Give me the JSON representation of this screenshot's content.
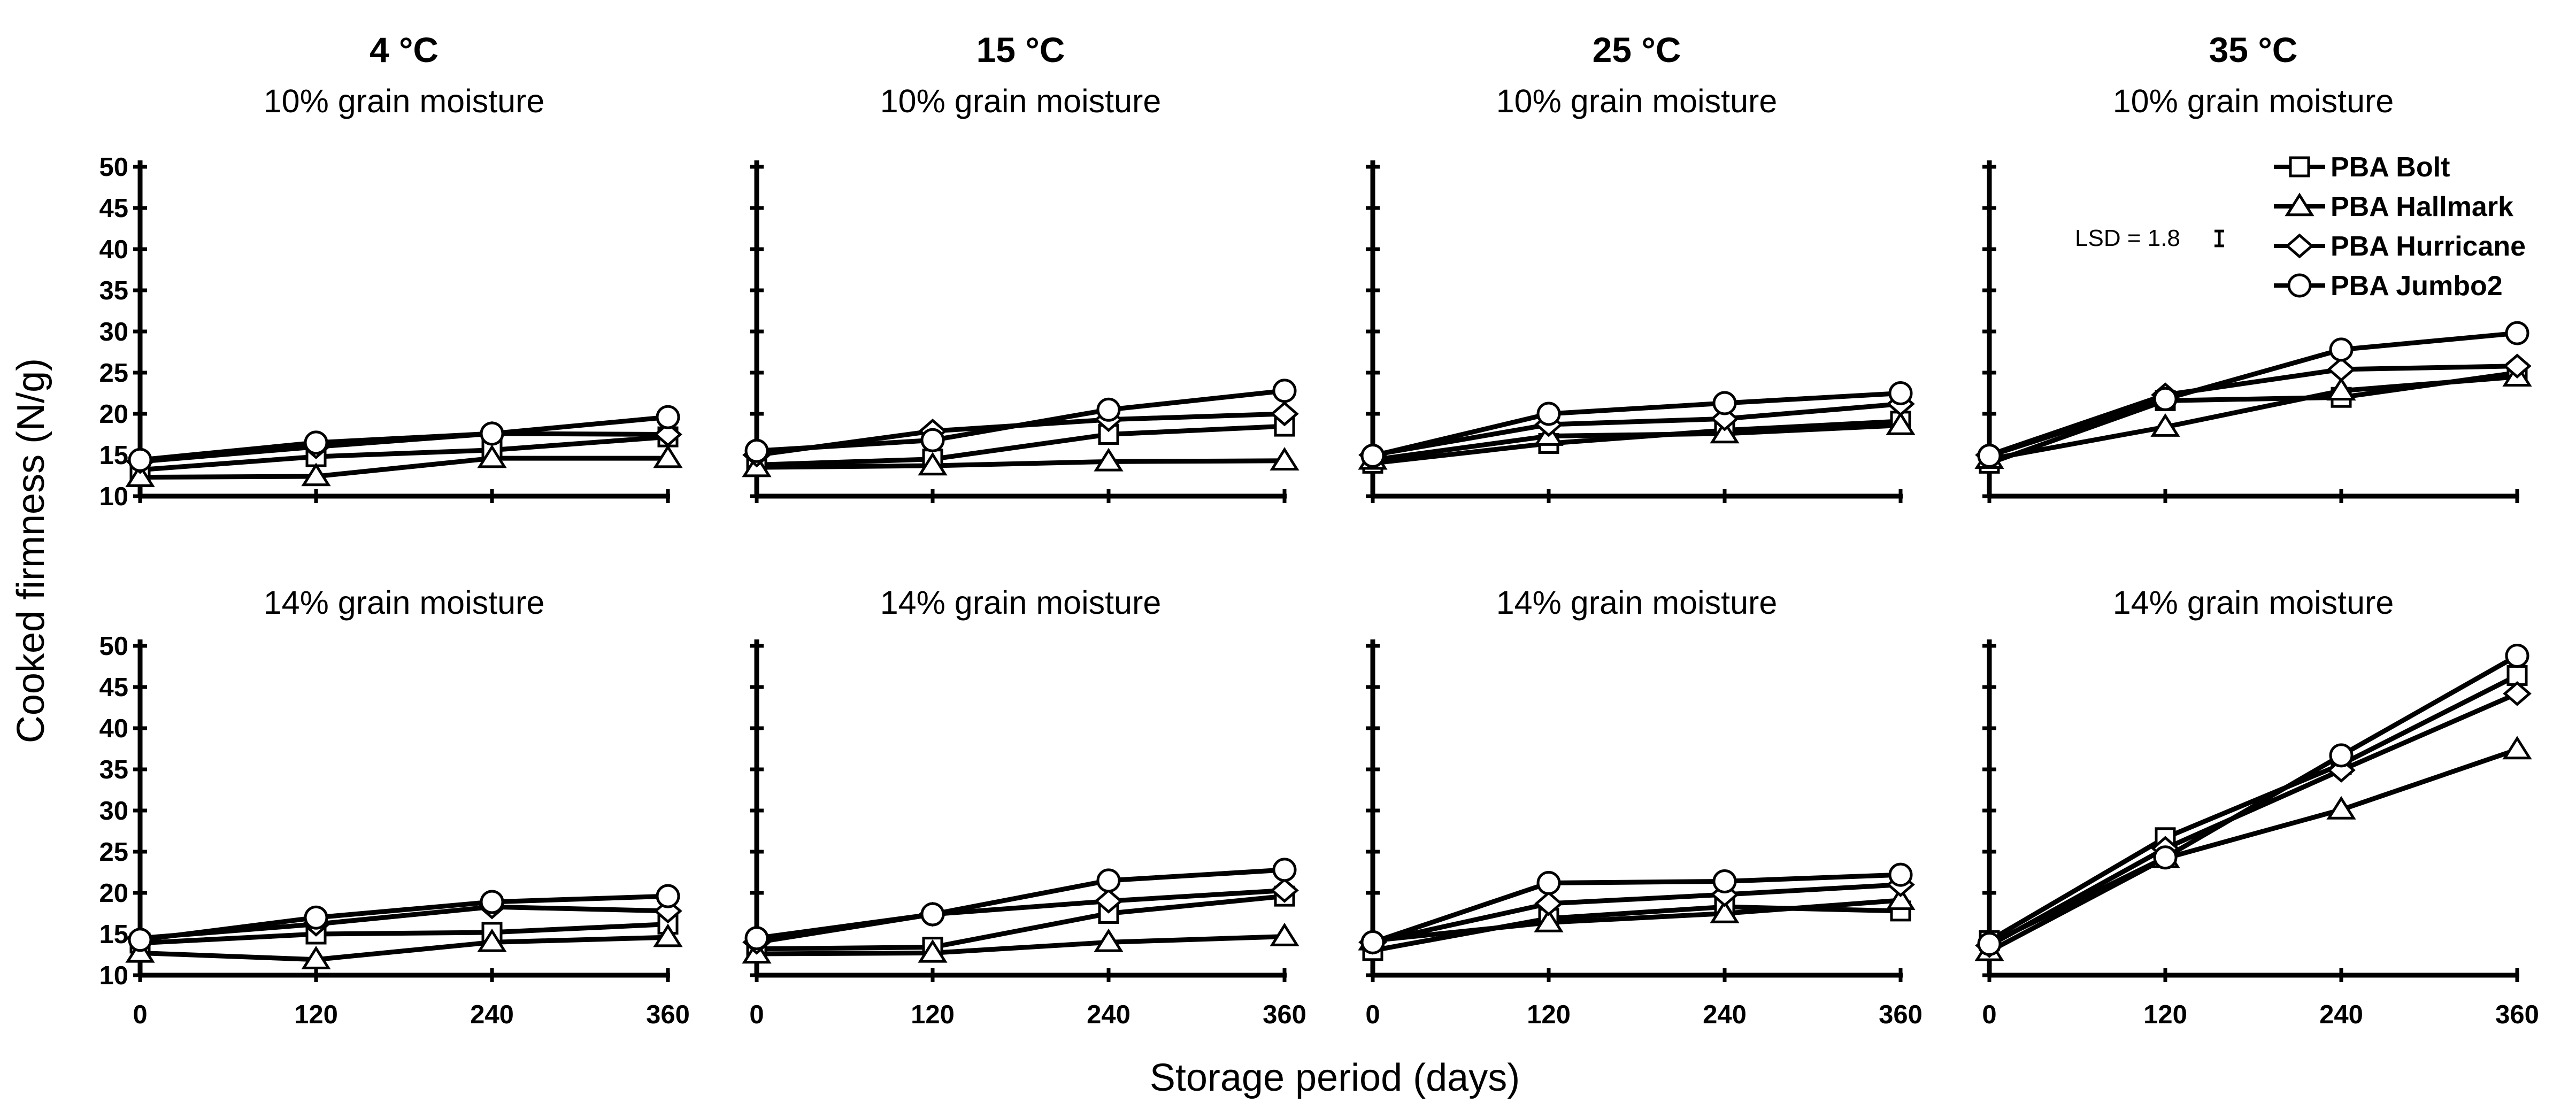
{
  "chart_data": {
    "type": "line",
    "ylabel": "Cooked firmness (N/g)",
    "xlabel": "Storage period (days)",
    "x": [
      0,
      120,
      240,
      360
    ],
    "x_tick_labels": [
      "0",
      "120",
      "240",
      "360"
    ],
    "y_tick_labels": [
      "10",
      "15",
      "20",
      "25",
      "30",
      "35",
      "40",
      "45",
      "50"
    ],
    "ylim": [
      10,
      50
    ],
    "xlim": [
      0,
      360
    ],
    "temperatures": [
      "4 °C",
      "15 °C",
      "25 °C",
      "35 °C"
    ],
    "moistures": [
      "10% grain moisture",
      "14% grain moisture"
    ],
    "legend": [
      {
        "name": "PBA Bolt",
        "marker": "square"
      },
      {
        "name": "PBA Hallmark",
        "marker": "triangle"
      },
      {
        "name": "PBA Hurricane",
        "marker": "diamond"
      },
      {
        "name": "PBA Jumbo2",
        "marker": "circle"
      }
    ],
    "annotation": {
      "text": "LSD = 1.8",
      "value": 1.8
    },
    "panels": [
      {
        "temperature": "4 °C",
        "moisture": "10% grain moisture",
        "series": [
          {
            "name": "PBA Bolt",
            "values": [
              13.2,
              14.8,
              15.6,
              17.2
            ]
          },
          {
            "name": "PBA Hallmark",
            "values": [
              12.3,
              12.4,
              14.6,
              14.6
            ]
          },
          {
            "name": "PBA Hurricane",
            "values": [
              14.2,
              16.0,
              17.6,
              17.5
            ]
          },
          {
            "name": "PBA Jumbo2",
            "values": [
              14.4,
              16.5,
              17.6,
              19.6
            ]
          }
        ]
      },
      {
        "temperature": "15 °C",
        "moisture": "10% grain moisture",
        "series": [
          {
            "name": "PBA Bolt",
            "values": [
              13.8,
              14.5,
              17.5,
              18.5
            ]
          },
          {
            "name": "PBA Hallmark",
            "values": [
              13.5,
              13.7,
              14.2,
              14.3
            ]
          },
          {
            "name": "PBA Hurricane",
            "values": [
              15.0,
              17.9,
              19.3,
              20.0
            ]
          },
          {
            "name": "PBA Jumbo2",
            "values": [
              15.5,
              16.8,
              20.5,
              22.8
            ]
          }
        ]
      },
      {
        "temperature": "25 °C",
        "moisture": "10% grain moisture",
        "series": [
          {
            "name": "PBA Bolt",
            "values": [
              14.0,
              16.4,
              18.0,
              19.1
            ]
          },
          {
            "name": "PBA Hallmark",
            "values": [
              14.4,
              17.3,
              17.6,
              18.6
            ]
          },
          {
            "name": "PBA Hurricane",
            "values": [
              15.0,
              18.7,
              19.4,
              21.2
            ]
          },
          {
            "name": "PBA Jumbo2",
            "values": [
              14.9,
              20.0,
              21.3,
              22.5
            ]
          }
        ]
      },
      {
        "temperature": "35 °C",
        "moisture": "10% grain moisture",
        "series": [
          {
            "name": "PBA Bolt",
            "values": [
              14.0,
              21.6,
              22.0,
              25.0
            ]
          },
          {
            "name": "PBA Hallmark",
            "values": [
              14.5,
              18.4,
              22.8,
              24.5
            ]
          },
          {
            "name": "PBA Hurricane",
            "values": [
              15.0,
              22.3,
              25.4,
              25.8
            ]
          },
          {
            "name": "PBA Jumbo2",
            "values": [
              14.9,
              21.8,
              27.8,
              29.8
            ]
          }
        ]
      },
      {
        "temperature": "4 °C",
        "moisture": "14% grain moisture",
        "series": [
          {
            "name": "PBA Bolt",
            "values": [
              13.9,
              15.0,
              15.2,
              16.2
            ]
          },
          {
            "name": "PBA Hallmark",
            "values": [
              12.7,
              11.9,
              14.0,
              14.6
            ]
          },
          {
            "name": "PBA Hurricane",
            "values": [
              14.5,
              16.2,
              18.3,
              17.8
            ]
          },
          {
            "name": "PBA Jumbo2",
            "values": [
              14.3,
              17.0,
              18.9,
              19.6
            ]
          }
        ]
      },
      {
        "temperature": "15 °C",
        "moisture": "14% grain moisture",
        "series": [
          {
            "name": "PBA Bolt",
            "values": [
              13.2,
              13.4,
              17.5,
              19.6
            ]
          },
          {
            "name": "PBA Hallmark",
            "values": [
              12.6,
              12.7,
              14.0,
              14.7
            ]
          },
          {
            "name": "PBA Hurricane",
            "values": [
              14.0,
              17.4,
              19.0,
              20.3
            ]
          },
          {
            "name": "PBA Jumbo2",
            "values": [
              14.5,
              17.4,
              21.5,
              22.8
            ]
          }
        ]
      },
      {
        "temperature": "25 °C",
        "moisture": "14% grain moisture",
        "series": [
          {
            "name": "PBA Bolt",
            "values": [
              13.0,
              16.9,
              18.3,
              17.8
            ]
          },
          {
            "name": "PBA Hallmark",
            "values": [
              14.2,
              16.4,
              17.5,
              19.1
            ]
          },
          {
            "name": "PBA Hurricane",
            "values": [
              14.0,
              18.7,
              19.8,
              21.0
            ]
          },
          {
            "name": "PBA Jumbo2",
            "values": [
              14.0,
              21.2,
              21.4,
              22.2
            ]
          }
        ]
      },
      {
        "temperature": "35 °C",
        "moisture": "14% grain moisture",
        "series": [
          {
            "name": "PBA Bolt",
            "values": [
              14.2,
              26.7,
              35.6,
              46.4
            ]
          },
          {
            "name": "PBA Hallmark",
            "values": [
              12.9,
              24.2,
              30.1,
              37.4
            ]
          },
          {
            "name": "PBA Hurricane",
            "values": [
              13.6,
              25.4,
              34.9,
              44.2
            ]
          },
          {
            "name": "PBA Jumbo2",
            "values": [
              13.8,
              24.3,
              36.7,
              48.8
            ]
          }
        ]
      }
    ]
  }
}
